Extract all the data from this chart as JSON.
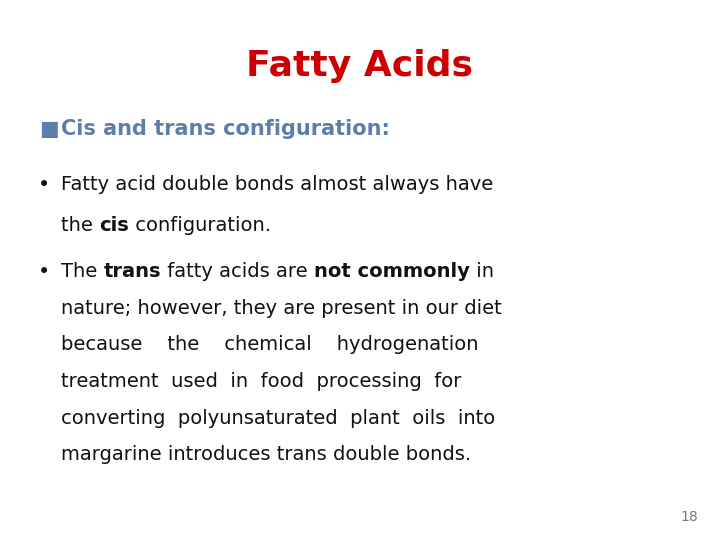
{
  "title": "Fatty Acids",
  "title_color": "#cc0000",
  "title_fontsize": 26,
  "section_text": "Cis and trans configuration:",
  "section_color": "#5b7faa",
  "section_fontsize": 15,
  "body_fontsize": 14,
  "body_color": "#111111",
  "page_number": "18",
  "background_color": "#ffffff",
  "fig_width": 7.2,
  "fig_height": 5.4,
  "dpi": 100
}
